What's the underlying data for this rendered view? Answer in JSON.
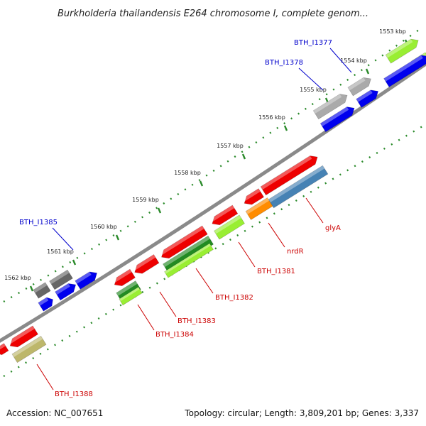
{
  "title": "Burkholderia thailandensis E264 chromosome I, complete genom...",
  "footer": {
    "accession": "Accession: NC_007651",
    "stats": "Topology: circular; Length: 3,809,201 bp; Genes: 3,337"
  },
  "ticks": [
    "1553 kbp",
    "1554 kbp",
    "1555 kbp",
    "1556 kbp",
    "1557 kbp",
    "1558 kbp",
    "1559 kbp",
    "1560 kbp",
    "1561 kbp",
    "1562 kbp"
  ],
  "labels": [
    {
      "text": "BTH_I1377",
      "color": "#0000cc"
    },
    {
      "text": "BTH_I1378",
      "color": "#0000cc"
    },
    {
      "text": "BTH_I1385",
      "color": "#0000cc"
    },
    {
      "text": "glyA",
      "color": "#cc0000"
    },
    {
      "text": "nrdR",
      "color": "#cc0000"
    },
    {
      "text": "BTH_I1381",
      "color": "#cc0000"
    },
    {
      "text": "BTH_I1382",
      "color": "#cc0000"
    },
    {
      "text": "BTH_I1383",
      "color": "#cc0000"
    },
    {
      "text": "BTH_I1384",
      "color": "#cc0000"
    },
    {
      "text": "BTH_I1388",
      "color": "#cc0000"
    }
  ],
  "colors": {
    "backbone": "#888888",
    "tick_dots": "#2a8a2a",
    "red_gene": "#ee0000",
    "blue_gene": "#0000ee",
    "gray_gene": "#aaaaaa",
    "dark_gray_gene": "#666666",
    "lime_gene": "#99ee33",
    "green_gene": "#228b22",
    "steelblue_gene": "#4682b4",
    "orange_gene": "#ff8c00",
    "khaki_gene": "#bdb76b"
  }
}
